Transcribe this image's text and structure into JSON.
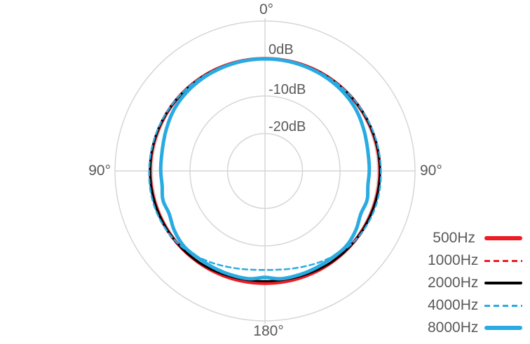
{
  "chart_data": {
    "type": "line",
    "subtype": "polar-pattern",
    "units": {
      "angle": "degrees",
      "radial": "dB"
    },
    "angle_zero": "top",
    "angle_direction": "clockwise",
    "radial_axis": {
      "center_db": -30,
      "outer_db": 10,
      "rings_db": [
        10,
        0,
        -10,
        -20
      ],
      "grid": true
    },
    "grid_color": "#d6d6d6",
    "label_color": "#595959",
    "ring_labels": [
      {
        "text": "0dB",
        "db": 0
      },
      {
        "text": "-10dB",
        "db": -10
      },
      {
        "text": "-20dB",
        "db": -20
      }
    ],
    "angle_labels": [
      {
        "text": "0°",
        "angle": 0
      },
      {
        "text": "90°",
        "angle": 90
      },
      {
        "text": "180°",
        "angle": 180
      },
      {
        "text": "90°",
        "angle": 270
      }
    ],
    "legend_position": "bottom-right",
    "series": [
      {
        "name": "500Hz",
        "color": "#ed1c24",
        "style": "solid",
        "width": 4.5,
        "points_deg_db": [
          [
            0,
            0
          ],
          [
            30,
            0.15
          ],
          [
            60,
            0.4
          ],
          [
            90,
            0.6
          ],
          [
            120,
            0.4
          ],
          [
            150,
            0.15
          ],
          [
            180,
            0
          ],
          [
            210,
            0.15
          ],
          [
            240,
            0.4
          ],
          [
            270,
            0.6
          ],
          [
            300,
            0.4
          ],
          [
            330,
            0.15
          ],
          [
            360,
            0
          ]
        ]
      },
      {
        "name": "1000Hz",
        "color": "#ed1c24",
        "style": "dashed",
        "width": 2.5,
        "points_deg_db": [
          [
            0,
            0
          ],
          [
            30,
            0.15
          ],
          [
            60,
            0.5
          ],
          [
            90,
            0.7
          ],
          [
            115,
            0.75
          ],
          [
            140,
            0.3
          ],
          [
            160,
            -0.2
          ],
          [
            180,
            -0.45
          ],
          [
            200,
            -0.2
          ],
          [
            220,
            0.3
          ],
          [
            245,
            0.75
          ],
          [
            270,
            0.7
          ],
          [
            300,
            0.5
          ],
          [
            330,
            0.15
          ],
          [
            360,
            0
          ]
        ]
      },
      {
        "name": "2000Hz",
        "color": "#000000",
        "style": "solid",
        "width": 3,
        "points_deg_db": [
          [
            0,
            0
          ],
          [
            30,
            0.1
          ],
          [
            60,
            0.45
          ],
          [
            90,
            0.65
          ],
          [
            120,
            0.45
          ],
          [
            145,
            0.05
          ],
          [
            165,
            -0.45
          ],
          [
            180,
            -0.6
          ],
          [
            195,
            -0.45
          ],
          [
            215,
            0.05
          ],
          [
            240,
            0.45
          ],
          [
            270,
            0.65
          ],
          [
            300,
            0.45
          ],
          [
            330,
            0.1
          ],
          [
            360,
            0
          ]
        ]
      },
      {
        "name": "4000Hz",
        "color": "#29abe2",
        "style": "dashed",
        "width": 2.5,
        "points_deg_db": [
          [
            0,
            0
          ],
          [
            30,
            0.1
          ],
          [
            60,
            0.55
          ],
          [
            90,
            0.9
          ],
          [
            110,
            0.95
          ],
          [
            130,
            0.2
          ],
          [
            150,
            -1.7
          ],
          [
            165,
            -3.0
          ],
          [
            180,
            -3.6
          ],
          [
            195,
            -3.0
          ],
          [
            210,
            -1.7
          ],
          [
            230,
            0.2
          ],
          [
            250,
            0.95
          ],
          [
            270,
            0.9
          ],
          [
            300,
            0.55
          ],
          [
            330,
            0.1
          ],
          [
            360,
            0
          ]
        ]
      },
      {
        "name": "8000Hz",
        "color": "#29abe2",
        "style": "solid",
        "width": 5,
        "points_deg_db": [
          [
            0,
            -0.1
          ],
          [
            20,
            -0.15
          ],
          [
            40,
            -0.3
          ],
          [
            55,
            -0.7
          ],
          [
            70,
            -1.6
          ],
          [
            80,
            -2.1
          ],
          [
            90,
            -2.2
          ],
          [
            98,
            -2.3
          ],
          [
            106,
            -1.7
          ],
          [
            114,
            -2.0
          ],
          [
            123,
            -1.1
          ],
          [
            133,
            -0.5
          ],
          [
            143,
            -0.75
          ],
          [
            155,
            -0.8
          ],
          [
            165,
            -0.85
          ],
          [
            172,
            -0.95
          ],
          [
            180,
            -1.6
          ],
          [
            188,
            -0.95
          ],
          [
            195,
            -0.85
          ],
          [
            205,
            -0.8
          ],
          [
            217,
            -0.75
          ],
          [
            227,
            -0.5
          ],
          [
            237,
            -1.1
          ],
          [
            246,
            -2.0
          ],
          [
            254,
            -1.7
          ],
          [
            262,
            -2.3
          ],
          [
            270,
            -2.2
          ],
          [
            280,
            -2.1
          ],
          [
            290,
            -1.6
          ],
          [
            305,
            -0.7
          ],
          [
            320,
            -0.3
          ],
          [
            340,
            -0.15
          ],
          [
            360,
            -0.1
          ]
        ]
      }
    ]
  }
}
